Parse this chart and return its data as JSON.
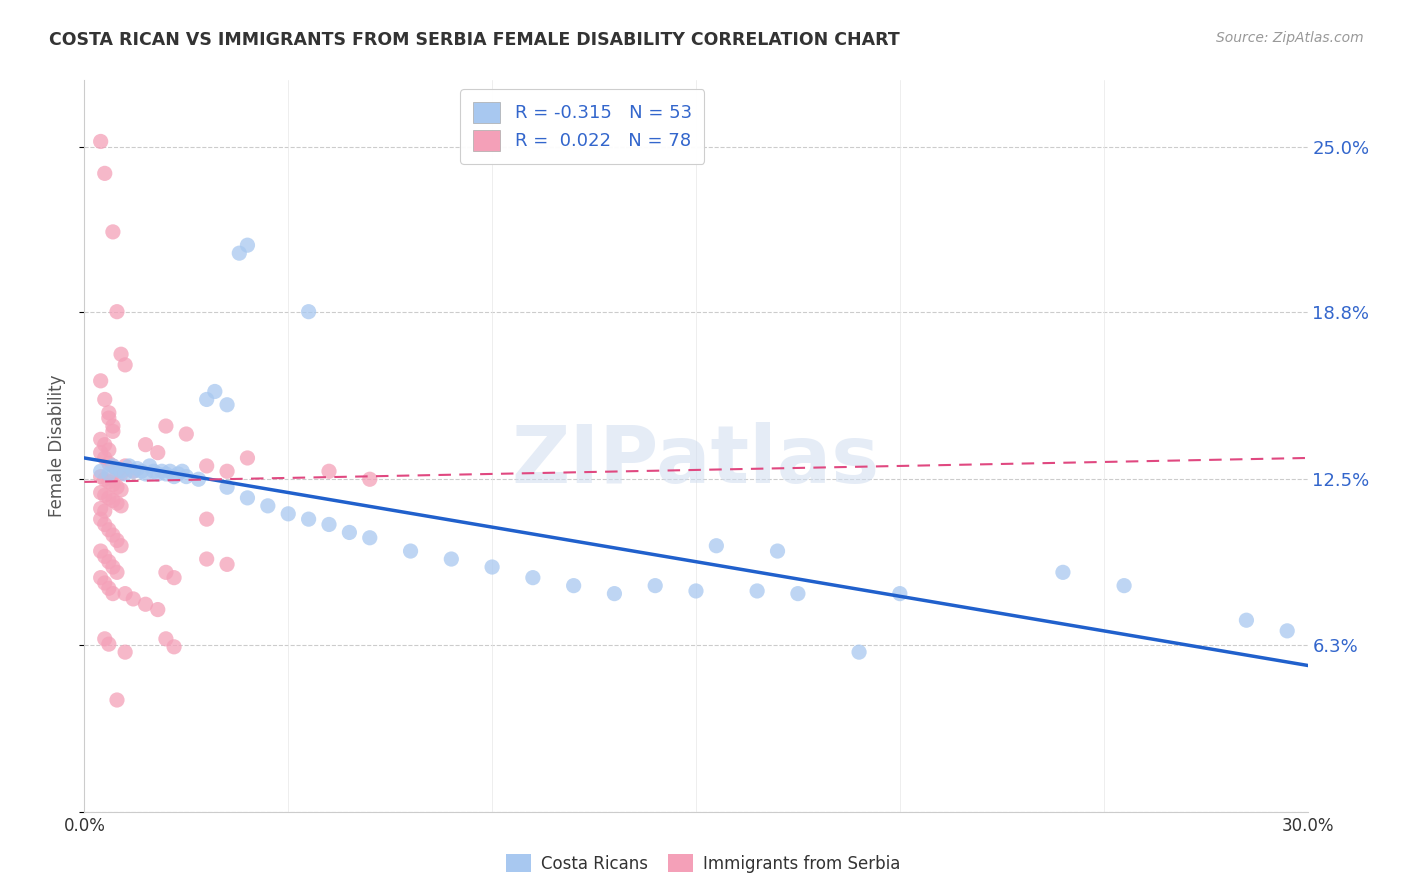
{
  "title": "COSTA RICAN VS IMMIGRANTS FROM SERBIA FEMALE DISABILITY CORRELATION CHART",
  "source": "Source: ZipAtlas.com",
  "ylabel": "Female Disability",
  "xlim": [
    0.0,
    0.3
  ],
  "ylim": [
    0.0,
    0.275
  ],
  "ytick_vals": [
    0.0,
    0.0625,
    0.125,
    0.188,
    0.25
  ],
  "ytick_labels": [
    "",
    "6.3%",
    "12.5%",
    "18.8%",
    "25.0%"
  ],
  "xtick_vals": [
    0.0,
    0.05,
    0.1,
    0.15,
    0.2,
    0.25,
    0.3
  ],
  "xtick_labels": [
    "0.0%",
    "",
    "",
    "",
    "",
    "",
    "30.0%"
  ],
  "legend_R_blue": "-0.315",
  "legend_N_blue": "53",
  "legend_R_pink": "0.022",
  "legend_N_pink": "78",
  "blue_color": "#a8c8f0",
  "pink_color": "#f4a0b8",
  "trend_blue_color": "#2060cc",
  "trend_pink_color": "#e04880",
  "watermark": "ZIPatlas",
  "blue_trend_x": [
    0.0,
    0.3
  ],
  "blue_trend_y": [
    0.133,
    0.055
  ],
  "pink_trend_x": [
    0.0,
    0.3
  ],
  "pink_trend_y": [
    0.124,
    0.133
  ],
  "blue_scatter": [
    [
      0.004,
      0.128
    ],
    [
      0.006,
      0.127
    ],
    [
      0.007,
      0.13
    ],
    [
      0.008,
      0.129
    ],
    [
      0.009,
      0.128
    ],
    [
      0.01,
      0.127
    ],
    [
      0.011,
      0.13
    ],
    [
      0.012,
      0.128
    ],
    [
      0.013,
      0.129
    ],
    [
      0.014,
      0.128
    ],
    [
      0.015,
      0.127
    ],
    [
      0.016,
      0.13
    ],
    [
      0.017,
      0.128
    ],
    [
      0.018,
      0.127
    ],
    [
      0.019,
      0.128
    ],
    [
      0.02,
      0.127
    ],
    [
      0.021,
      0.128
    ],
    [
      0.022,
      0.126
    ],
    [
      0.023,
      0.127
    ],
    [
      0.024,
      0.128
    ],
    [
      0.025,
      0.126
    ],
    [
      0.028,
      0.125
    ],
    [
      0.03,
      0.155
    ],
    [
      0.032,
      0.158
    ],
    [
      0.035,
      0.153
    ],
    [
      0.038,
      0.21
    ],
    [
      0.04,
      0.213
    ],
    [
      0.055,
      0.188
    ],
    [
      0.035,
      0.122
    ],
    [
      0.04,
      0.118
    ],
    [
      0.045,
      0.115
    ],
    [
      0.05,
      0.112
    ],
    [
      0.055,
      0.11
    ],
    [
      0.06,
      0.108
    ],
    [
      0.065,
      0.105
    ],
    [
      0.07,
      0.103
    ],
    [
      0.08,
      0.098
    ],
    [
      0.09,
      0.095
    ],
    [
      0.1,
      0.092
    ],
    [
      0.11,
      0.088
    ],
    [
      0.12,
      0.085
    ],
    [
      0.13,
      0.082
    ],
    [
      0.14,
      0.085
    ],
    [
      0.15,
      0.083
    ],
    [
      0.165,
      0.083
    ],
    [
      0.175,
      0.082
    ],
    [
      0.2,
      0.082
    ],
    [
      0.155,
      0.1
    ],
    [
      0.17,
      0.098
    ],
    [
      0.24,
      0.09
    ],
    [
      0.255,
      0.085
    ],
    [
      0.285,
      0.072
    ],
    [
      0.295,
      0.068
    ],
    [
      0.19,
      0.06
    ]
  ],
  "pink_scatter": [
    [
      0.004,
      0.252
    ],
    [
      0.005,
      0.24
    ],
    [
      0.007,
      0.218
    ],
    [
      0.008,
      0.188
    ],
    [
      0.009,
      0.172
    ],
    [
      0.01,
      0.168
    ],
    [
      0.004,
      0.162
    ],
    [
      0.005,
      0.155
    ],
    [
      0.006,
      0.15
    ],
    [
      0.006,
      0.148
    ],
    [
      0.007,
      0.145
    ],
    [
      0.007,
      0.143
    ],
    [
      0.004,
      0.14
    ],
    [
      0.005,
      0.138
    ],
    [
      0.006,
      0.136
    ],
    [
      0.004,
      0.135
    ],
    [
      0.005,
      0.133
    ],
    [
      0.006,
      0.131
    ],
    [
      0.007,
      0.13
    ],
    [
      0.008,
      0.128
    ],
    [
      0.009,
      0.127
    ],
    [
      0.004,
      0.126
    ],
    [
      0.005,
      0.125
    ],
    [
      0.006,
      0.124
    ],
    [
      0.007,
      0.123
    ],
    [
      0.008,
      0.122
    ],
    [
      0.009,
      0.121
    ],
    [
      0.004,
      0.12
    ],
    [
      0.005,
      0.119
    ],
    [
      0.006,
      0.118
    ],
    [
      0.007,
      0.117
    ],
    [
      0.008,
      0.116
    ],
    [
      0.009,
      0.115
    ],
    [
      0.004,
      0.114
    ],
    [
      0.005,
      0.113
    ],
    [
      0.01,
      0.13
    ],
    [
      0.012,
      0.128
    ],
    [
      0.015,
      0.138
    ],
    [
      0.018,
      0.135
    ],
    [
      0.02,
      0.145
    ],
    [
      0.025,
      0.142
    ],
    [
      0.03,
      0.13
    ],
    [
      0.035,
      0.128
    ],
    [
      0.04,
      0.133
    ],
    [
      0.06,
      0.128
    ],
    [
      0.07,
      0.125
    ],
    [
      0.004,
      0.11
    ],
    [
      0.005,
      0.108
    ],
    [
      0.006,
      0.106
    ],
    [
      0.007,
      0.104
    ],
    [
      0.008,
      0.102
    ],
    [
      0.009,
      0.1
    ],
    [
      0.004,
      0.098
    ],
    [
      0.005,
      0.096
    ],
    [
      0.006,
      0.094
    ],
    [
      0.007,
      0.092
    ],
    [
      0.008,
      0.09
    ],
    [
      0.004,
      0.088
    ],
    [
      0.005,
      0.086
    ],
    [
      0.006,
      0.084
    ],
    [
      0.007,
      0.082
    ],
    [
      0.01,
      0.082
    ],
    [
      0.012,
      0.08
    ],
    [
      0.015,
      0.078
    ],
    [
      0.018,
      0.076
    ],
    [
      0.02,
      0.09
    ],
    [
      0.022,
      0.088
    ],
    [
      0.03,
      0.095
    ],
    [
      0.035,
      0.093
    ],
    [
      0.005,
      0.065
    ],
    [
      0.006,
      0.063
    ],
    [
      0.01,
      0.06
    ],
    [
      0.02,
      0.065
    ],
    [
      0.022,
      0.062
    ],
    [
      0.03,
      0.11
    ],
    [
      0.008,
      0.042
    ]
  ]
}
